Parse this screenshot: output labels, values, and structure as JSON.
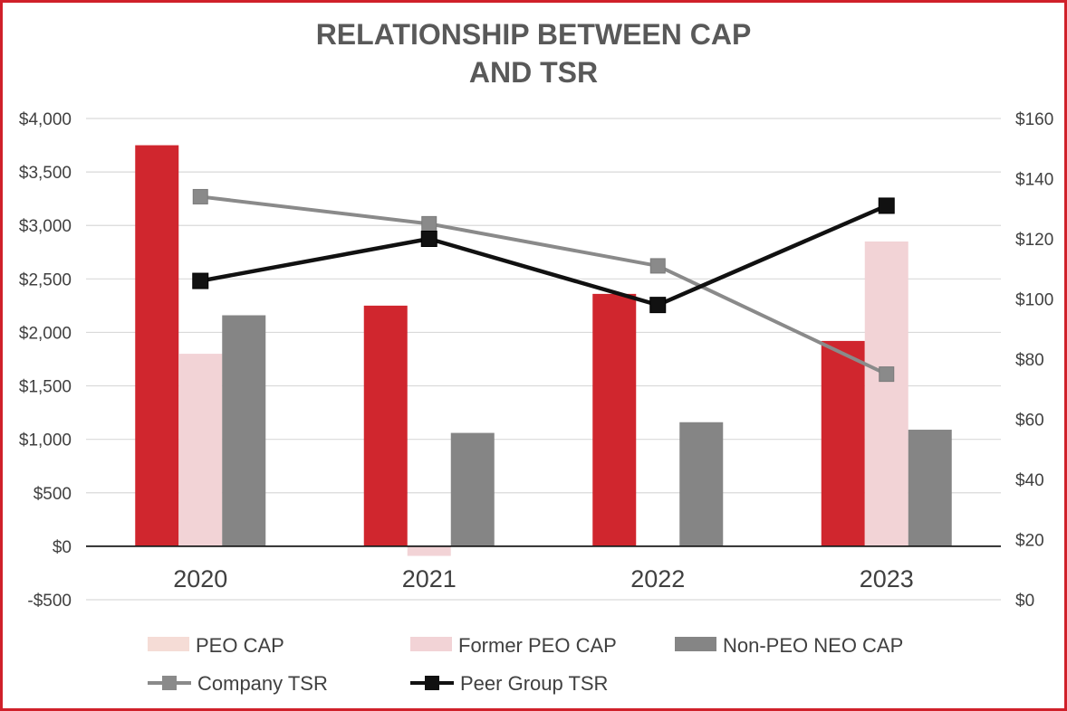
{
  "chart_data": {
    "type": "bar",
    "title_lines": [
      "RELATIONSHIP BETWEEN CAP",
      "AND TSR"
    ],
    "categories": [
      "2020",
      "2021",
      "2022",
      "2023"
    ],
    "left_axis": {
      "ylim": [
        -500,
        4000
      ],
      "ticks": [
        -500,
        0,
        500,
        1000,
        1500,
        2000,
        2500,
        3000,
        3500,
        4000
      ],
      "tick_labels": [
        "-$500",
        "$0",
        "$500",
        "$1,000",
        "$1,500",
        "$2,000",
        "$2,500",
        "$3,000",
        "$3,500",
        "$4,000"
      ]
    },
    "right_axis": {
      "ylim": [
        0,
        160
      ],
      "ticks": [
        0,
        20,
        40,
        60,
        80,
        100,
        120,
        140,
        160
      ],
      "tick_labels": [
        "$0",
        "$20",
        "$40",
        "$60",
        "$80",
        "$100",
        "$120",
        "$140",
        "$160"
      ]
    },
    "bar_series": [
      {
        "name": "PEO CAP",
        "color": "#d0262e",
        "legend_color": "#f5dcd6",
        "values": [
          3750,
          2250,
          2360,
          1920
        ]
      },
      {
        "name": "Former PEO CAP",
        "color": "#f2d3d6",
        "legend_color": "#f2d3d6",
        "values": [
          1800,
          -90,
          0,
          2850
        ]
      },
      {
        "name": "Non-PEO NEO CAP",
        "color": "#858585",
        "legend_color": "#858585",
        "values": [
          2160,
          1060,
          1160,
          1090
        ]
      }
    ],
    "line_series": [
      {
        "name": "Company TSR",
        "color": "#8a8a8a",
        "axis": "right",
        "values": [
          134,
          125,
          111,
          75
        ]
      },
      {
        "name": "Peer Group TSR",
        "color": "#111111",
        "axis": "right",
        "values": [
          106,
          120,
          98,
          131
        ]
      }
    ],
    "grid": true,
    "legend_position": "bottom"
  }
}
